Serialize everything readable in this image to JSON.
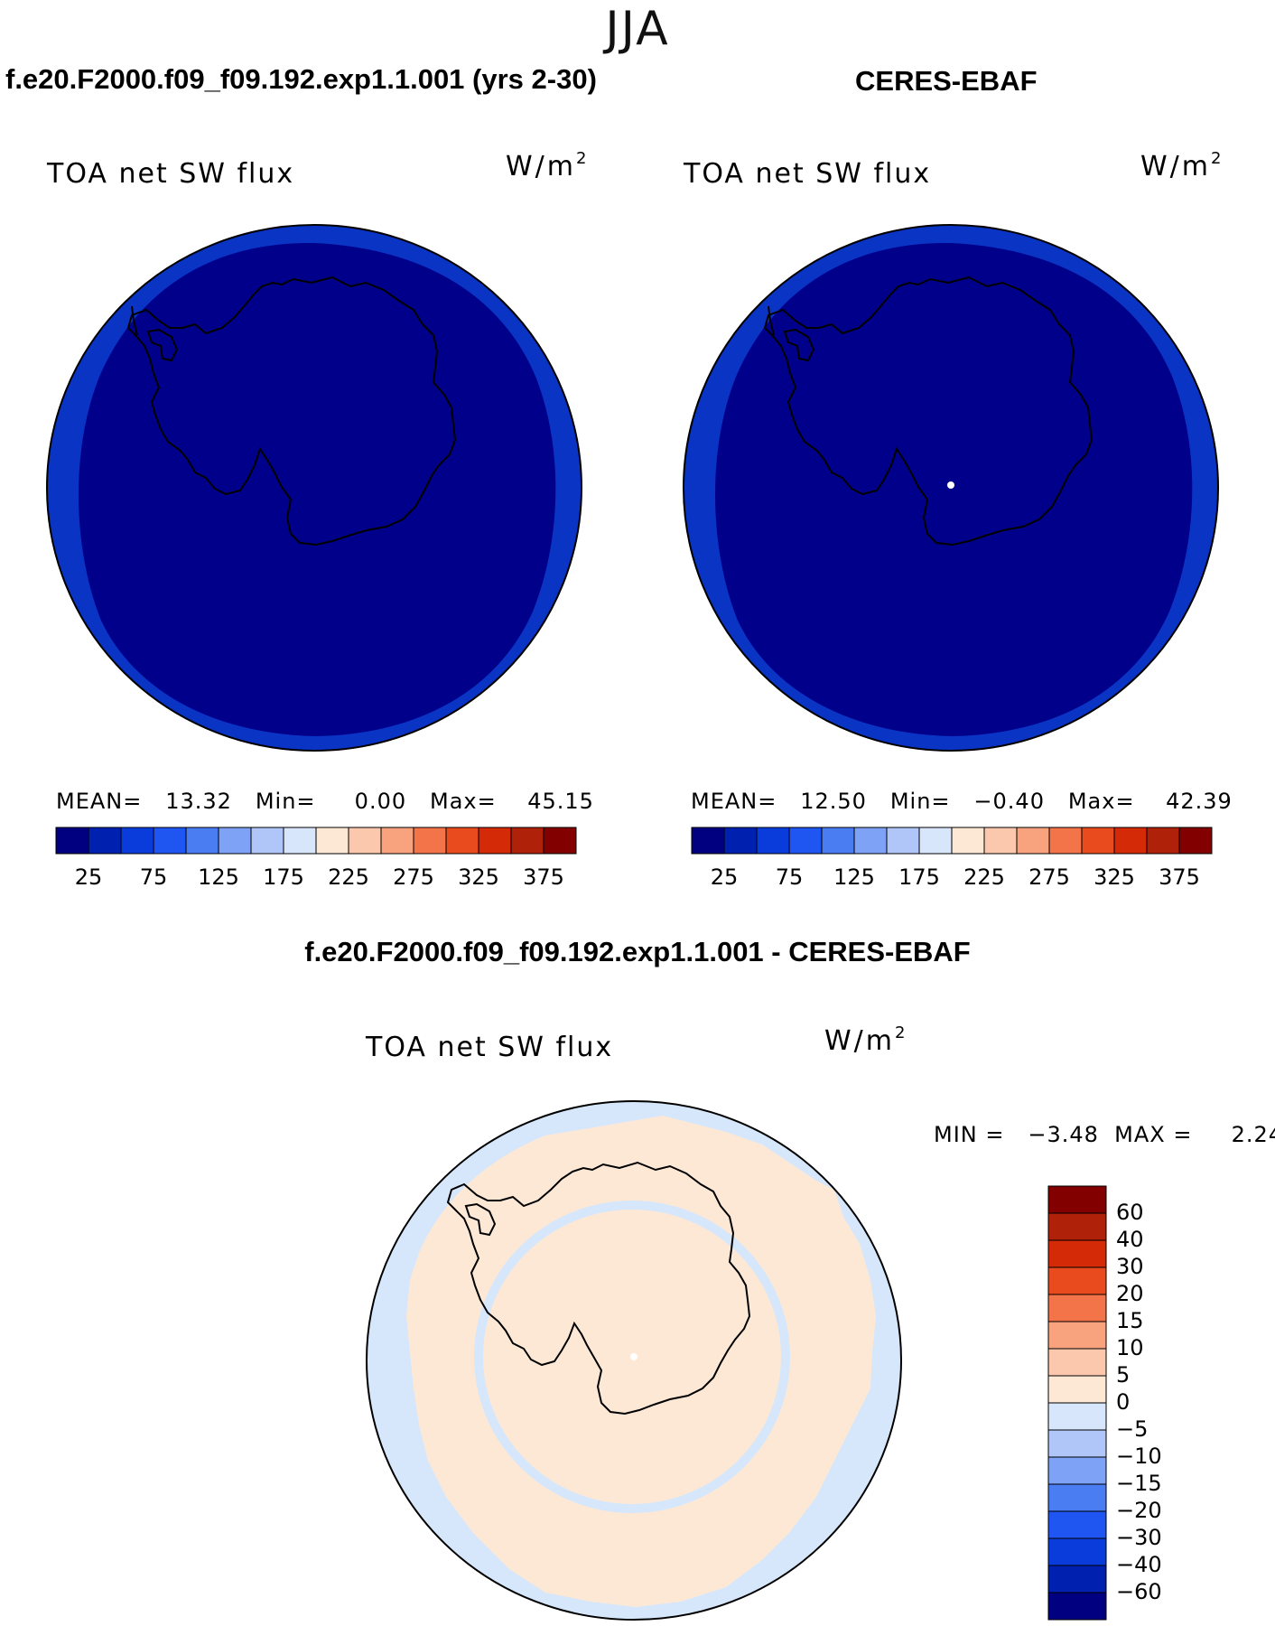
{
  "season": "JJA",
  "panels": [
    {
      "title": "f.e20.F2000.f09_f09.192.exp1.1.001 (yrs 2-30)",
      "variable": "TOA net SW flux",
      "units_base": "W/m",
      "units_exp": "2",
      "stats": "MEAN=   13.32   Min=     0.00   Max=    45.15"
    },
    {
      "title": "CERES-EBAF",
      "variable": "TOA net SW flux",
      "units_base": "W/m",
      "units_exp": "2",
      "stats": "MEAN=   12.50   Min=   −0.40   Max=    42.39"
    }
  ],
  "diff_panel": {
    "title": "f.e20.F2000.f09_f09.192.exp1.1.001 - CERES-EBAF",
    "variable": "TOA net SW flux",
    "units_base": "W/m",
    "units_exp": "2",
    "stats": "MIN =   −3.48  MAX =     2.24"
  },
  "abs_colorbar": {
    "colors": [
      "#000080",
      "#0020b0",
      "#0a3cdc",
      "#1f55f0",
      "#4a7cf2",
      "#7ea2f5",
      "#b0c6f8",
      "#d8e6fb",
      "#fde8d6",
      "#fbc7ad",
      "#f8a27e",
      "#f4744a",
      "#e94b1e",
      "#d42a08",
      "#b0210a",
      "#820000"
    ],
    "labels": [
      "25",
      "75",
      "125",
      "175",
      "225",
      "275",
      "325",
      "375"
    ]
  },
  "diff_colorbar": {
    "colors": [
      "#820000",
      "#b0210a",
      "#d42a08",
      "#e94b1e",
      "#f4744a",
      "#f8a27e",
      "#fbc7ad",
      "#fde8d6",
      "#d8e6fb",
      "#b0c6f8",
      "#7ea2f5",
      "#4a7cf2",
      "#1f55f0",
      "#0a3cdc",
      "#0020b0",
      "#000080"
    ],
    "labels": [
      "60",
      "40",
      "30",
      "20",
      "15",
      "10",
      "5",
      "0",
      "−5",
      "−10",
      "−15",
      "−20",
      "−30",
      "−40",
      "−60"
    ]
  },
  "map_colors": {
    "outer_ring": "#0a34c4",
    "inner_field": "#00008a",
    "diff_negative": "#d6e7fb",
    "diff_positive": "#fde8d6",
    "coastline": "#000000",
    "pole_dot": "#ffffff"
  }
}
